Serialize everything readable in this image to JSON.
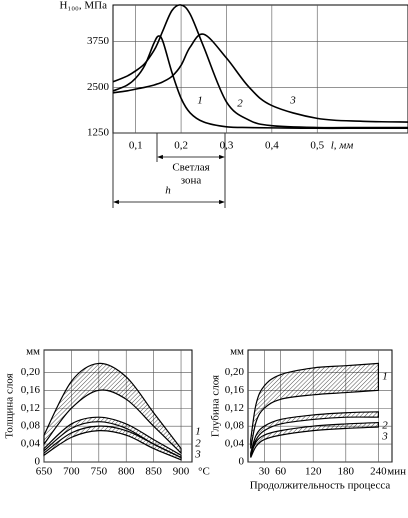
{
  "chart_data": [
    {
      "type": "line",
      "y_label": "H₁₀₀, МПа",
      "x_label": "l, мм",
      "x": [
        0.05,
        0.08,
        0.1,
        0.12,
        0.14,
        0.15,
        0.16,
        0.18,
        0.2,
        0.22,
        0.25,
        0.3,
        0.35,
        0.4,
        0.5,
        0.6,
        0.7
      ],
      "series": [
        {
          "name": "1",
          "color": "#000000",
          "values": [
            2400,
            2550,
            2750,
            3100,
            3700,
            3900,
            3750,
            2900,
            2200,
            1800,
            1550,
            1420,
            1400,
            1390,
            1380,
            1380,
            1380
          ]
        },
        {
          "name": "2",
          "color": "#000000",
          "values": [
            2650,
            2800,
            2950,
            3150,
            3500,
            3750,
            4050,
            4600,
            4750,
            4500,
            3600,
            2100,
            1600,
            1450,
            1400,
            1400,
            1400
          ]
        },
        {
          "name": "3",
          "color": "#000000",
          "values": [
            2350,
            2400,
            2450,
            2500,
            2560,
            2600,
            2650,
            2800,
            3100,
            3600,
            3950,
            3300,
            2500,
            2000,
            1650,
            1570,
            1550
          ]
        }
      ],
      "xlim": [
        0.05,
        0.7
      ],
      "ylim": [
        1250,
        4750
      ],
      "xticks": [
        {
          "value": 0.1,
          "label": "0,1"
        },
        {
          "value": 0.2,
          "label": "0,2"
        },
        {
          "value": 0.3,
          "label": "0,3"
        },
        {
          "value": 0.4,
          "label": "0,4"
        },
        {
          "value": 0.5,
          "label": "0,5"
        }
      ],
      "yticks": [
        1250,
        2500,
        3750
      ],
      "grid": true,
      "annotations": [
        "Светлая",
        "зона",
        "h"
      ]
    },
    {
      "type": "band",
      "y_label": "Толщина слоя",
      "y_unit": "мм",
      "x_unit": "°C",
      "x": [
        650,
        700,
        750,
        800,
        850,
        900
      ],
      "series": [
        {
          "name": "1",
          "color": "#000000",
          "upper": [
            0.06,
            0.18,
            0.22,
            0.19,
            0.11,
            0.03
          ],
          "lower": [
            0.04,
            0.12,
            0.16,
            0.14,
            0.08,
            0.02
          ]
        },
        {
          "name": "2",
          "color": "#000000",
          "upper": [
            0.03,
            0.085,
            0.1,
            0.085,
            0.05,
            0.015
          ],
          "lower": [
            0.025,
            0.075,
            0.09,
            0.075,
            0.04,
            0.01
          ]
        },
        {
          "name": "3",
          "color": "#000000",
          "upper": [
            0.02,
            0.065,
            0.08,
            0.07,
            0.04,
            0.01
          ],
          "lower": [
            0.015,
            0.055,
            0.07,
            0.06,
            0.03,
            0.005
          ]
        }
      ],
      "xlim": [
        650,
        920
      ],
      "ylim": [
        0,
        0.25
      ],
      "xticks": [
        650,
        700,
        750,
        800,
        850,
        900
      ],
      "yticks": [
        0,
        {
          "value": 0.04,
          "label": "0,04"
        },
        {
          "value": 0.08,
          "label": "0,08"
        },
        {
          "value": 0.12,
          "label": "0,12"
        },
        {
          "value": 0.16,
          "label": "0,16"
        },
        {
          "value": 0.2,
          "label": "0,20"
        }
      ],
      "grid": true
    },
    {
      "type": "band",
      "y_label": "Глубина слоя",
      "y_unit": "мм",
      "x_unit": "мин",
      "x_label": "Продолжительность процесса",
      "x": [
        5,
        15,
        30,
        60,
        120,
        180,
        240
      ],
      "series": [
        {
          "name": "1",
          "color": "#000000",
          "upper": [
            0.05,
            0.13,
            0.17,
            0.195,
            0.21,
            0.215,
            0.22
          ],
          "lower": [
            0.03,
            0.09,
            0.12,
            0.14,
            0.15,
            0.155,
            0.16
          ]
        },
        {
          "name": "2",
          "color": "#000000",
          "upper": [
            0.02,
            0.06,
            0.08,
            0.095,
            0.105,
            0.11,
            0.112
          ],
          "lower": [
            0.015,
            0.05,
            0.07,
            0.085,
            0.095,
            0.1,
            0.1
          ]
        },
        {
          "name": "3",
          "color": "#000000",
          "upper": [
            0.015,
            0.045,
            0.06,
            0.07,
            0.08,
            0.085,
            0.088
          ],
          "lower": [
            0.01,
            0.035,
            0.05,
            0.06,
            0.07,
            0.075,
            0.078
          ]
        }
      ],
      "xlim": [
        0,
        265
      ],
      "ylim": [
        0,
        0.25
      ],
      "xticks": [
        30,
        60,
        120,
        180,
        240
      ],
      "yticks": [
        0,
        {
          "value": 0.04,
          "label": "0,04"
        },
        {
          "value": 0.08,
          "label": "0,08"
        },
        {
          "value": 0.12,
          "label": "0,12"
        },
        {
          "value": 0.16,
          "label": "0,16"
        },
        {
          "value": 0.2,
          "label": "0,20"
        }
      ],
      "grid": true
    }
  ]
}
